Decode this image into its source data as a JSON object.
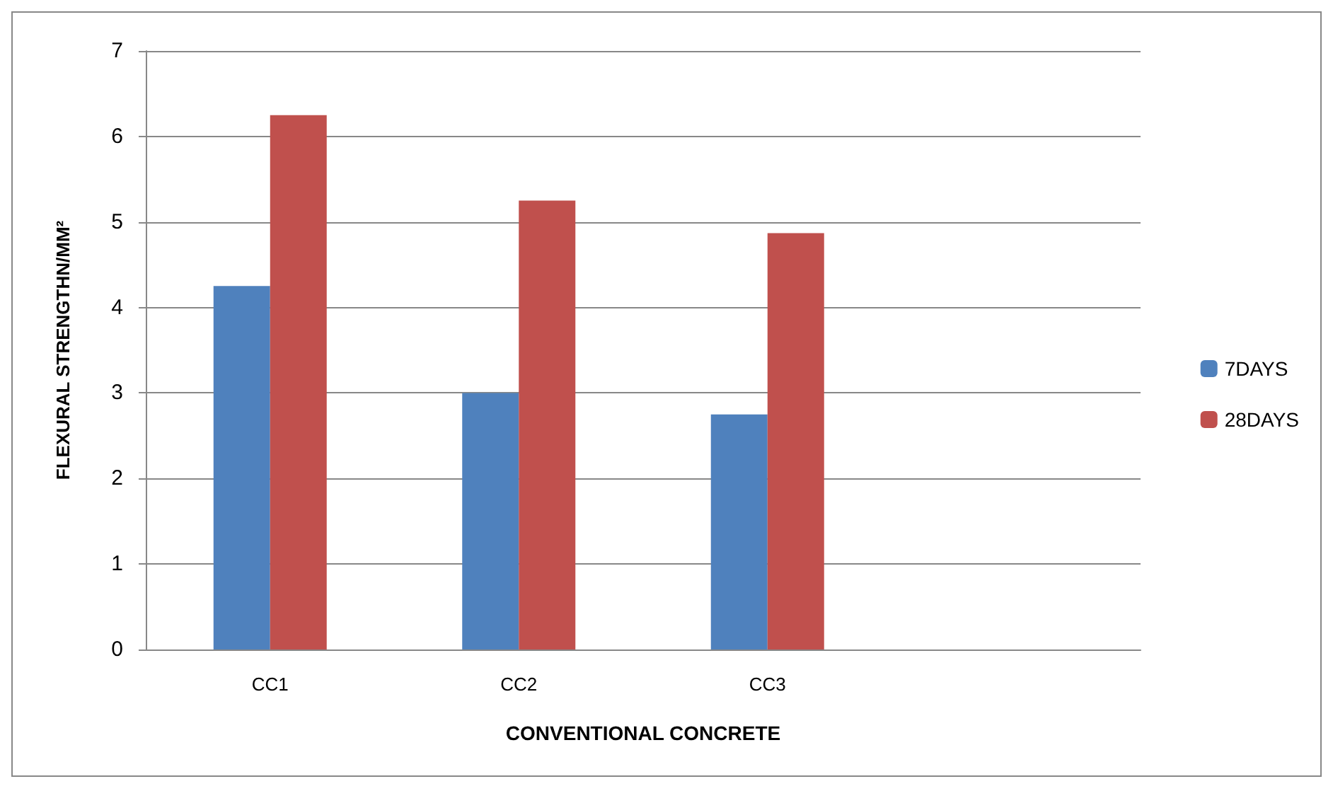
{
  "chart_data": {
    "type": "bar",
    "xlabel": "CONVENTIONAL CONCRETE",
    "ylabel": "FLEXURAL STRENGTHN/MM²",
    "categories": [
      "CC1",
      "CC2",
      "CC3",
      null
    ],
    "series": [
      {
        "name": "7DAYS",
        "color": "#4f81bd",
        "values": [
          4.25,
          3,
          2.75,
          null
        ]
      },
      {
        "name": "28DAYS",
        "color": "#c0504d",
        "values": [
          6.25,
          5.25,
          4.87,
          null
        ]
      }
    ],
    "ylim": [
      0,
      7
    ],
    "yticks": [
      0,
      1,
      2,
      3,
      4,
      5,
      6,
      7
    ],
    "grid": "y",
    "legend": "right"
  }
}
